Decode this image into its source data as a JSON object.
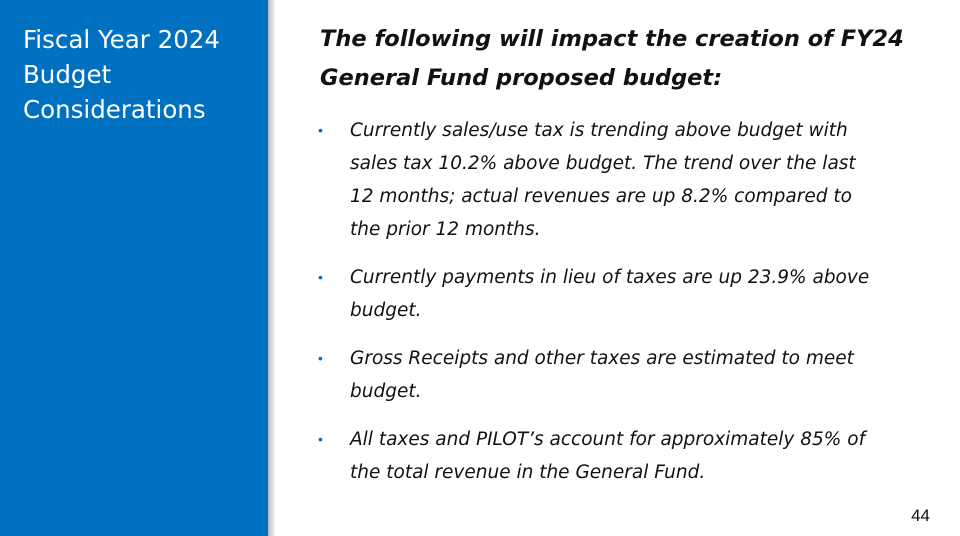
{
  "sidebar": {
    "title_lines": [
      "Fiscal Year 2024",
      "Budget",
      "Considerations"
    ],
    "background_color": "#0070c0"
  },
  "main": {
    "heading_lines": [
      "The following will impact the creation of FY24",
      "General Fund proposed budget:"
    ],
    "bullet_marker": "•",
    "bullets": [
      {
        "lines": [
          "Currently sales/use tax is trending above budget with",
          "sales tax 10.2% above budget.  The trend over the last",
          "12 months; actual revenues are up 8.2% compared to",
          "the prior 12 months."
        ]
      },
      {
        "lines": [
          "Currently payments in lieu of taxes are up 23.9% above",
          "budget."
        ]
      },
      {
        "lines": [
          "Gross Receipts and other taxes are estimated to meet",
          "budget."
        ]
      },
      {
        "lines": [
          "All taxes and PILOT’s account for approximately 85% of",
          "the total revenue in the General Fund."
        ]
      }
    ]
  },
  "footer": {
    "page_number": "44"
  }
}
